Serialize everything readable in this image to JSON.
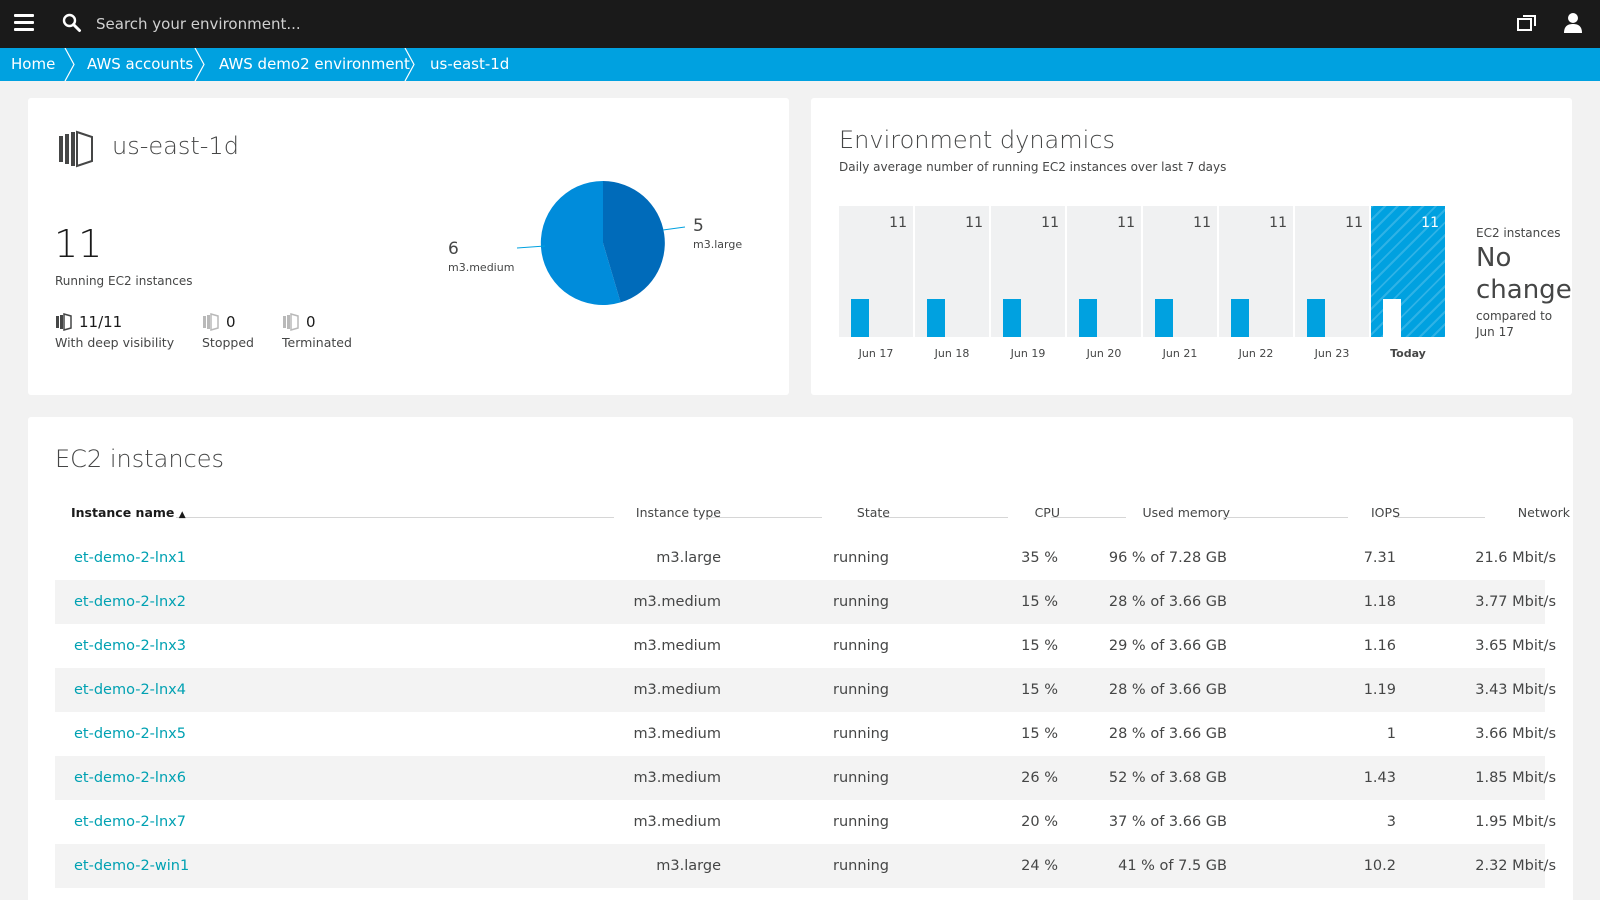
{
  "header": {
    "search_placeholder": "Search your environment...",
    "icons": [
      "menu-icon",
      "search-icon",
      "windows-icon",
      "user-icon"
    ]
  },
  "breadcrumb": [
    "Home",
    "AWS accounts",
    "AWS demo2 environment",
    "us-east-1d"
  ],
  "region": {
    "title": "us-east-1d",
    "running_count": "11",
    "running_label": "Running EC2 instances",
    "stats": [
      {
        "value": "11/11",
        "label": "With deep visibility"
      },
      {
        "value": "0",
        "label": "Stopped"
      },
      {
        "value": "0",
        "label": "Terminated"
      }
    ],
    "pie_labels": {
      "medium_value": "6",
      "medium_name": "m3.medium",
      "large_value": "5",
      "large_name": "m3.large"
    }
  },
  "dynamics": {
    "title": "Environment dynamics",
    "subtitle": "Daily average number of running EC2 instances over last 7 days",
    "days": [
      {
        "value": "11",
        "date": "Jun 17"
      },
      {
        "value": "11",
        "date": "Jun 18"
      },
      {
        "value": "11",
        "date": "Jun 19"
      },
      {
        "value": "11",
        "date": "Jun 20"
      },
      {
        "value": "11",
        "date": "Jun 21"
      },
      {
        "value": "11",
        "date": "Jun 22"
      },
      {
        "value": "11",
        "date": "Jun 23"
      },
      {
        "value": "11",
        "date": "Today"
      }
    ],
    "compare_head": "EC2 instances",
    "compare_value": "No change",
    "compare_text": "compared to Jun 17"
  },
  "ec2": {
    "title": "EC2 instances",
    "columns": [
      "Instance name",
      "Instance type",
      "State",
      "CPU",
      "Used memory",
      "IOPS",
      "Network"
    ],
    "sort_indicator": "▲",
    "rows": [
      {
        "name": "et-demo-2-lnx1",
        "type": "m3.large",
        "state": "running",
        "cpu": "35 %",
        "mem": "96 % of 7.28 GB",
        "iops": "7.31",
        "net": "21.6 Mbit/s"
      },
      {
        "name": "et-demo-2-lnx2",
        "type": "m3.medium",
        "state": "running",
        "cpu": "15 %",
        "mem": "28 % of 3.66 GB",
        "iops": "1.18",
        "net": "3.77 Mbit/s"
      },
      {
        "name": "et-demo-2-lnx3",
        "type": "m3.medium",
        "state": "running",
        "cpu": "15 %",
        "mem": "29 % of 3.66 GB",
        "iops": "1.16",
        "net": "3.65 Mbit/s"
      },
      {
        "name": "et-demo-2-lnx4",
        "type": "m3.medium",
        "state": "running",
        "cpu": "15 %",
        "mem": "28 % of 3.66 GB",
        "iops": "1.19",
        "net": "3.43 Mbit/s"
      },
      {
        "name": "et-demo-2-lnx5",
        "type": "m3.medium",
        "state": "running",
        "cpu": "15 %",
        "mem": "28 % of 3.66 GB",
        "iops": "1",
        "net": "3.66 Mbit/s"
      },
      {
        "name": "et-demo-2-lnx6",
        "type": "m3.medium",
        "state": "running",
        "cpu": "26 %",
        "mem": "52 % of 3.68 GB",
        "iops": "1.43",
        "net": "1.85 Mbit/s"
      },
      {
        "name": "et-demo-2-lnx7",
        "type": "m3.medium",
        "state": "running",
        "cpu": "20 %",
        "mem": "37 % of 3.66 GB",
        "iops": "3",
        "net": "1.95 Mbit/s"
      },
      {
        "name": "et-demo-2-win1",
        "type": "m3.large",
        "state": "running",
        "cpu": "24 %",
        "mem": "41 % of 7.5 GB",
        "iops": "10.2",
        "net": "2.32 Mbit/s"
      }
    ]
  },
  "colors": {
    "accent": "#00a1e0",
    "link": "#00a1b2",
    "pie_large": "#006bba",
    "pie_medium": "#008cdb",
    "topbar": "#1a1a1a"
  }
}
